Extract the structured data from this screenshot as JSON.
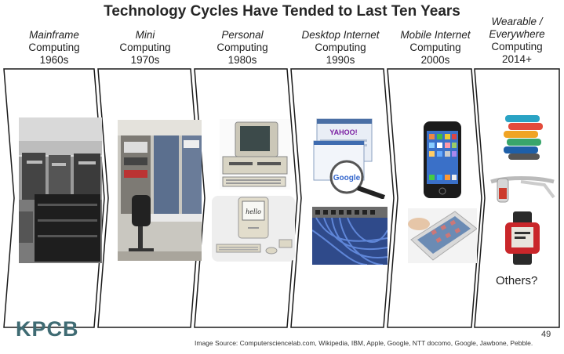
{
  "title": "Technology Cycles Have Tended to Last Ten Years",
  "eras": [
    {
      "lines": [
        "Mainframe"
      ],
      "rest": [
        "Computing",
        "1960s"
      ]
    },
    {
      "lines": [
        "Mini"
      ],
      "rest": [
        "Computing",
        "1970s"
      ]
    },
    {
      "lines": [
        "Personal"
      ],
      "rest": [
        "Computing",
        "1980s"
      ]
    },
    {
      "lines": [
        "Desktop Internet"
      ],
      "rest": [
        "Computing",
        "1990s"
      ]
    },
    {
      "lines": [
        "Mobile Internet"
      ],
      "rest": [
        "Computing",
        "2000s"
      ]
    },
    {
      "lines": [
        "Wearable /",
        "Everywhere"
      ],
      "rest": [
        "Computing",
        "2014+"
      ]
    }
  ],
  "google_label": "Google",
  "yahoo_label": "YAHOO!",
  "hello_label": "hello",
  "others_label": "Others?",
  "logo_text": "KPCB",
  "page_number": "49",
  "source_text": "Image Source: Computersciencelab.com, Wikipedia, IBM, Apple, Google, NTT docomo, Google, Jawbone, Pebble.",
  "colors": {
    "accent_logo": "#3f6b73",
    "chevron_stroke": "#1a1a1a"
  }
}
